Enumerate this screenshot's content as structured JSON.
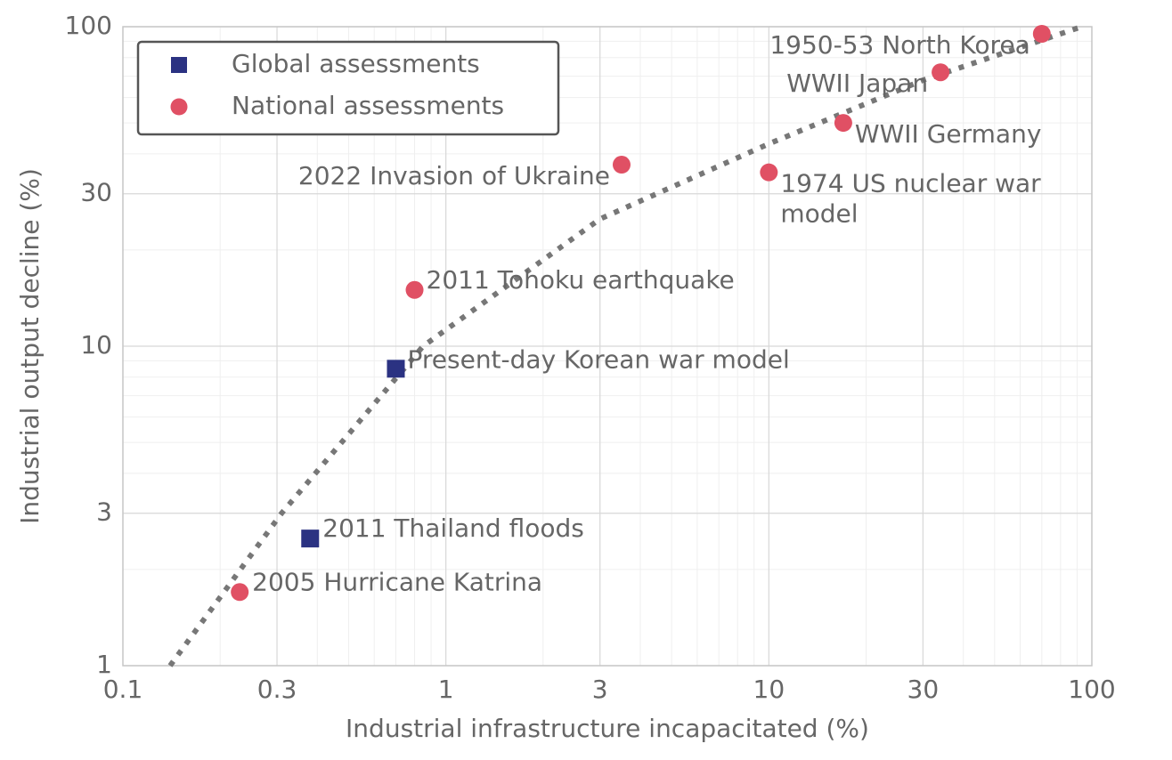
{
  "chart_data": {
    "type": "scatter",
    "xlabel": "Industrial infrastructure incapacitated (%)",
    "ylabel": "Industrial output decline (%)",
    "xscale": "log",
    "yscale": "log",
    "xlim": [
      0.1,
      100
    ],
    "ylim": [
      1,
      100
    ],
    "xticks": [
      0.1,
      0.3,
      1,
      3,
      10,
      30,
      100
    ],
    "yticks": [
      1,
      3,
      10,
      30,
      100
    ],
    "grid": true,
    "minor_grid": true,
    "legend": "upper left",
    "series": [
      {
        "name": "Global assessments",
        "color": "#2b3282",
        "marker": "square",
        "x": [
          0.38,
          0.7
        ],
        "values": [
          2.5,
          8.5
        ],
        "labels": [
          "2011 Thailand floods",
          "Present-day Korean war model"
        ]
      },
      {
        "name": "National assessments",
        "color": "#e05064",
        "marker": "circle",
        "x": [
          0.23,
          0.8,
          3.5,
          10,
          17,
          34,
          70
        ],
        "values": [
          1.7,
          15,
          37,
          35,
          50,
          72,
          95
        ],
        "labels": [
          "2005 Hurricane Katrina",
          "2011 Tohoku earthquake",
          "2022 Invasion of Ukraine",
          "1974 US nuclear war\nmodel",
          "WWII Germany",
          "WWII Japan",
          "1950-53 North Korea"
        ]
      }
    ],
    "fit_curve": {
      "color": "#777777",
      "x": [
        0.14,
        0.31,
        0.85,
        3,
        10,
        30,
        93
      ],
      "y": [
        1,
        3,
        10,
        25,
        43,
        68,
        100
      ]
    }
  }
}
